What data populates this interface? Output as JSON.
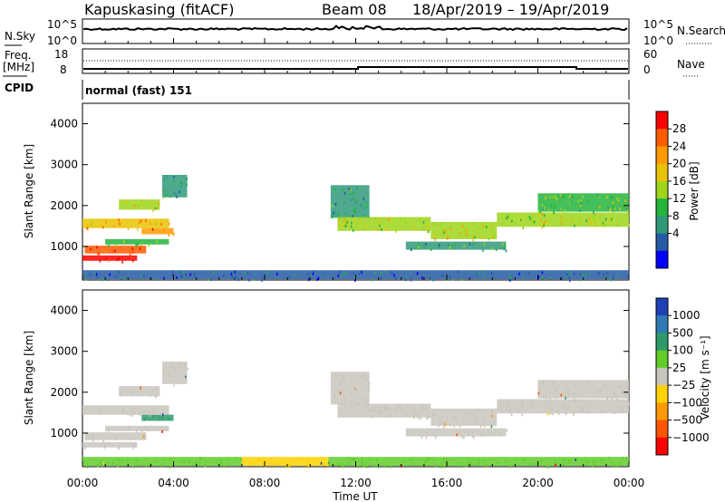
{
  "header": {
    "station": "Kapuskasing (fitACF)",
    "beam": "Beam 08",
    "date_range": "18/Apr/2019 – 19/Apr/2019"
  },
  "panels": {
    "nsky": {
      "left_label": "N.Sky",
      "right_label": "N.Search",
      "left_ticks": [
        "10^5",
        "10^0"
      ],
      "right_ticks": [
        "10^5",
        "10^0"
      ]
    },
    "freq": {
      "left_label_1": "Freq.",
      "left_label_2": "[MHz]",
      "right_label": "Nave",
      "left_ticks": [
        "18",
        "8"
      ],
      "right_ticks": [
        "60",
        "0"
      ]
    },
    "cpid": {
      "label": "CPID",
      "value": "normal (fast) 151"
    }
  },
  "chart_data": [
    {
      "type": "heatmap",
      "title": "",
      "xlabel": "Time UT",
      "ylabel": "Slant Range [km]",
      "x_ticks": [
        "00:00",
        "04:00",
        "08:00",
        "12:00",
        "16:00",
        "20:00",
        "00:00"
      ],
      "xlim_hours": [
        0,
        24
      ],
      "ylim": [
        180,
        4500
      ],
      "y_ticks": [
        1000,
        2000,
        3000,
        4000
      ],
      "colorbar": {
        "label": "Power [dB]",
        "ticks": [
          "28",
          "24",
          "20",
          "16",
          "12",
          "8",
          "4"
        ],
        "colors": [
          "#ff0000",
          "#ff5a00",
          "#ff9b00",
          "#e9c300",
          "#9ed51a",
          "#24b43c",
          "#2f9a7a",
          "#255aa5",
          "#0000ff"
        ]
      },
      "regions": [
        {
          "t": [
            0.0,
            2.4
          ],
          "r": [
            650,
            780
          ],
          "value": 30
        },
        {
          "t": [
            0.1,
            2.8
          ],
          "r": [
            830,
            1020
          ],
          "value": 28
        },
        {
          "t": [
            1.0,
            3.8
          ],
          "r": [
            1050,
            1180
          ],
          "value": 14
        },
        {
          "t": [
            2.6,
            4.0
          ],
          "r": [
            1300,
            1450
          ],
          "value": 22
        },
        {
          "t": [
            0.0,
            3.8
          ],
          "r": [
            1450,
            1680
          ],
          "value": 19
        },
        {
          "t": [
            1.6,
            3.4
          ],
          "r": [
            1900,
            2150
          ],
          "value": 18
        },
        {
          "t": [
            3.5,
            4.6
          ],
          "r": [
            2200,
            2750
          ],
          "value": 11
        },
        {
          "t": [
            0.0,
            24.0
          ],
          "r": [
            200,
            420
          ],
          "value": 7
        },
        {
          "t": [
            10.9,
            12.6
          ],
          "r": [
            1700,
            2500
          ],
          "value": 9
        },
        {
          "t": [
            11.2,
            15.3
          ],
          "r": [
            1380,
            1720
          ],
          "value": 16
        },
        {
          "t": [
            15.3,
            18.2
          ],
          "r": [
            1180,
            1600
          ],
          "value": 17
        },
        {
          "t": [
            14.2,
            18.6
          ],
          "r": [
            920,
            1120
          ],
          "value": 9
        },
        {
          "t": [
            18.2,
            24.0
          ],
          "r": [
            1480,
            1830
          ],
          "value": 17
        },
        {
          "t": [
            20.0,
            24.0
          ],
          "r": [
            1850,
            2300
          ],
          "value": 12
        }
      ]
    },
    {
      "type": "heatmap",
      "title": "",
      "xlabel": "Time UT",
      "ylabel": "Slant Range [km]",
      "x_ticks": [
        "00:00",
        "04:00",
        "08:00",
        "12:00",
        "16:00",
        "20:00",
        "00:00"
      ],
      "xlim_hours": [
        0,
        24
      ],
      "ylim": [
        180,
        4500
      ],
      "y_ticks": [
        1000,
        2000,
        3000,
        4000
      ],
      "colorbar": {
        "label": "Velocity [m s⁻¹]",
        "ticks": [
          "1000",
          "500",
          "100",
          "25",
          "−25",
          "−100",
          "−500",
          "−1000"
        ],
        "colors": [
          "#1f3fb4",
          "#2f7ab5",
          "#2e9a6a",
          "#62cc2a",
          "#c8c6bc",
          "#ffd200",
          "#ff9900",
          "#ff5500",
          "#ff0000"
        ]
      },
      "regions": [
        {
          "t": [
            0.0,
            2.4
          ],
          "r": [
            650,
            780
          ],
          "value": 0
        },
        {
          "t": [
            0.1,
            2.8
          ],
          "r": [
            830,
            1020
          ],
          "value": 0
        },
        {
          "t": [
            1.0,
            3.8
          ],
          "r": [
            1050,
            1180
          ],
          "value": 0
        },
        {
          "t": [
            2.6,
            4.0
          ],
          "r": [
            1300,
            1450
          ],
          "value": 150
        },
        {
          "t": [
            0.0,
            3.8
          ],
          "r": [
            1450,
            1680
          ],
          "value": 0
        },
        {
          "t": [
            1.6,
            3.4
          ],
          "r": [
            1900,
            2150
          ],
          "value": 0
        },
        {
          "t": [
            3.5,
            4.6
          ],
          "r": [
            2200,
            2750
          ],
          "value": 0
        },
        {
          "t": [
            0.0,
            7.0
          ],
          "r": [
            200,
            420
          ],
          "value": 60
        },
        {
          "t": [
            7.0,
            10.8
          ],
          "r": [
            200,
            420
          ],
          "value": -60
        },
        {
          "t": [
            10.8,
            24.0
          ],
          "r": [
            200,
            420
          ],
          "value": 60
        },
        {
          "t": [
            10.9,
            12.6
          ],
          "r": [
            1700,
            2500
          ],
          "value": 0
        },
        {
          "t": [
            11.2,
            15.3
          ],
          "r": [
            1380,
            1720
          ],
          "value": 0
        },
        {
          "t": [
            15.3,
            18.2
          ],
          "r": [
            1180,
            1600
          ],
          "value": 0
        },
        {
          "t": [
            14.2,
            18.6
          ],
          "r": [
            920,
            1120
          ],
          "value": 0
        },
        {
          "t": [
            18.2,
            24.0
          ],
          "r": [
            1480,
            1830
          ],
          "value": 0
        },
        {
          "t": [
            20.0,
            24.0
          ],
          "r": [
            1850,
            2300
          ],
          "value": 0
        }
      ]
    }
  ]
}
